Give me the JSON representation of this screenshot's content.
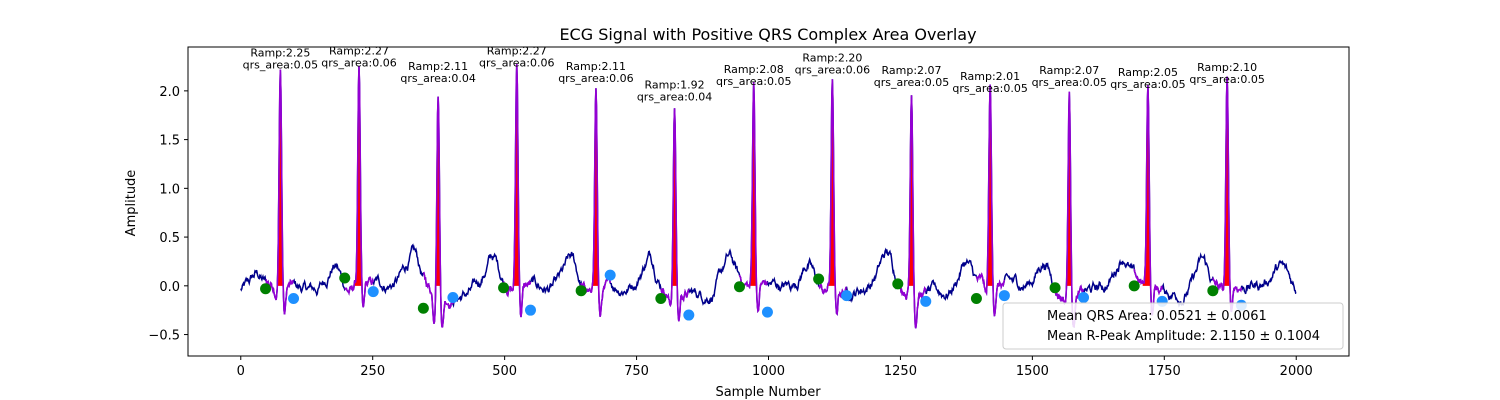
{
  "chart_data": {
    "type": "line",
    "title": "ECG Signal with Positive QRS Complex Area Overlay",
    "xlabel": "Sample Number",
    "ylabel": "Amplitude",
    "xlim": [
      -100,
      2100
    ],
    "ylim": [
      -0.72,
      2.45
    ],
    "xticks": [
      0,
      250,
      500,
      750,
      1000,
      1250,
      1500,
      1750,
      2000
    ],
    "yticks": [
      -0.5,
      0.0,
      0.5,
      1.0,
      1.5,
      2.0
    ],
    "xtick_labels": [
      "0",
      "250",
      "500",
      "750",
      "1000",
      "1250",
      "1500",
      "1750",
      "2000"
    ],
    "ytick_labels": [
      "−0.5",
      "0.0",
      "0.5",
      "1.0",
      "1.5",
      "2.0"
    ],
    "grid": false,
    "colors": {
      "signal": "#00008b",
      "qrs_segment": "#9400d3",
      "qrs_area_fill": "#ff0000",
      "q_marker": "#008000",
      "s_marker": "#1e90ff"
    },
    "beats": [
      {
        "r_x": 75,
        "r_amp": 2.25,
        "qrs_area": 0.05,
        "ramp_label": "Ramp:2.25",
        "area_label": "qrs_area:0.05",
        "q_x": 47,
        "q_y": -0.03,
        "s_x": 100,
        "s_y": -0.13
      },
      {
        "r_x": 224,
        "r_amp": 2.27,
        "qrs_area": 0.06,
        "ramp_label": "Ramp:2.27",
        "area_label": "qrs_area:0.06",
        "q_x": 197,
        "q_y": 0.08,
        "s_x": 251,
        "s_y": -0.06
      },
      {
        "r_x": 374,
        "r_amp": 2.11,
        "qrs_area": 0.04,
        "ramp_label": "Ramp:2.11",
        "area_label": "qrs_area:0.04",
        "q_x": 346,
        "q_y": -0.23,
        "s_x": 402,
        "s_y": -0.12
      },
      {
        "r_x": 523,
        "r_amp": 2.27,
        "qrs_area": 0.06,
        "ramp_label": "Ramp:2.27",
        "area_label": "qrs_area:0.06",
        "q_x": 498,
        "q_y": -0.02,
        "s_x": 549,
        "s_y": -0.25
      },
      {
        "r_x": 673,
        "r_amp": 2.11,
        "qrs_area": 0.06,
        "ramp_label": "Ramp:2.11",
        "area_label": "qrs_area:0.06",
        "q_x": 645,
        "q_y": -0.05,
        "s_x": 700,
        "s_y": 0.11
      },
      {
        "r_x": 822,
        "r_amp": 1.92,
        "qrs_area": 0.04,
        "ramp_label": "Ramp:1.92",
        "area_label": "qrs_area:0.04",
        "q_x": 796,
        "q_y": -0.13,
        "s_x": 849,
        "s_y": -0.3
      },
      {
        "r_x": 972,
        "r_amp": 2.08,
        "qrs_area": 0.05,
        "ramp_label": "Ramp:2.08",
        "area_label": "qrs_area:0.05",
        "q_x": 945,
        "q_y": -0.01,
        "s_x": 998,
        "s_y": -0.27
      },
      {
        "r_x": 1121,
        "r_amp": 2.2,
        "qrs_area": 0.06,
        "ramp_label": "Ramp:2.20",
        "area_label": "qrs_area:0.06",
        "q_x": 1095,
        "q_y": 0.07,
        "s_x": 1148,
        "s_y": -0.1
      },
      {
        "r_x": 1271,
        "r_amp": 2.07,
        "qrs_area": 0.05,
        "ramp_label": "Ramp:2.07",
        "area_label": "qrs_area:0.05",
        "q_x": 1245,
        "q_y": 0.02,
        "s_x": 1298,
        "s_y": -0.16
      },
      {
        "r_x": 1420,
        "r_amp": 2.01,
        "qrs_area": 0.05,
        "ramp_label": "Ramp:2.01",
        "area_label": "qrs_area:0.05",
        "q_x": 1394,
        "q_y": -0.13,
        "s_x": 1447,
        "s_y": -0.1
      },
      {
        "r_x": 1570,
        "r_amp": 2.07,
        "qrs_area": 0.05,
        "ramp_label": "Ramp:2.07",
        "area_label": "qrs_area:0.05",
        "q_x": 1543,
        "q_y": -0.02,
        "s_x": 1597,
        "s_y": -0.12
      },
      {
        "r_x": 1719,
        "r_amp": 2.05,
        "qrs_area": 0.05,
        "ramp_label": "Ramp:2.05",
        "area_label": "qrs_area:0.05",
        "q_x": 1693,
        "q_y": 0.0,
        "s_x": 1746,
        "s_y": -0.16
      },
      {
        "r_x": 1869,
        "r_amp": 2.1,
        "qrs_area": 0.05,
        "ramp_label": "Ramp:2.10",
        "area_label": "qrs_area:0.05",
        "q_x": 1842,
        "q_y": -0.05,
        "s_x": 1896,
        "s_y": -0.2
      }
    ],
    "legend": {
      "placement": "lower-right",
      "entries": [
        "Mean QRS Area: 0.0521 ± 0.0061",
        "Mean R-Peak Amplitude: 2.1150 ± 0.1004"
      ]
    }
  }
}
